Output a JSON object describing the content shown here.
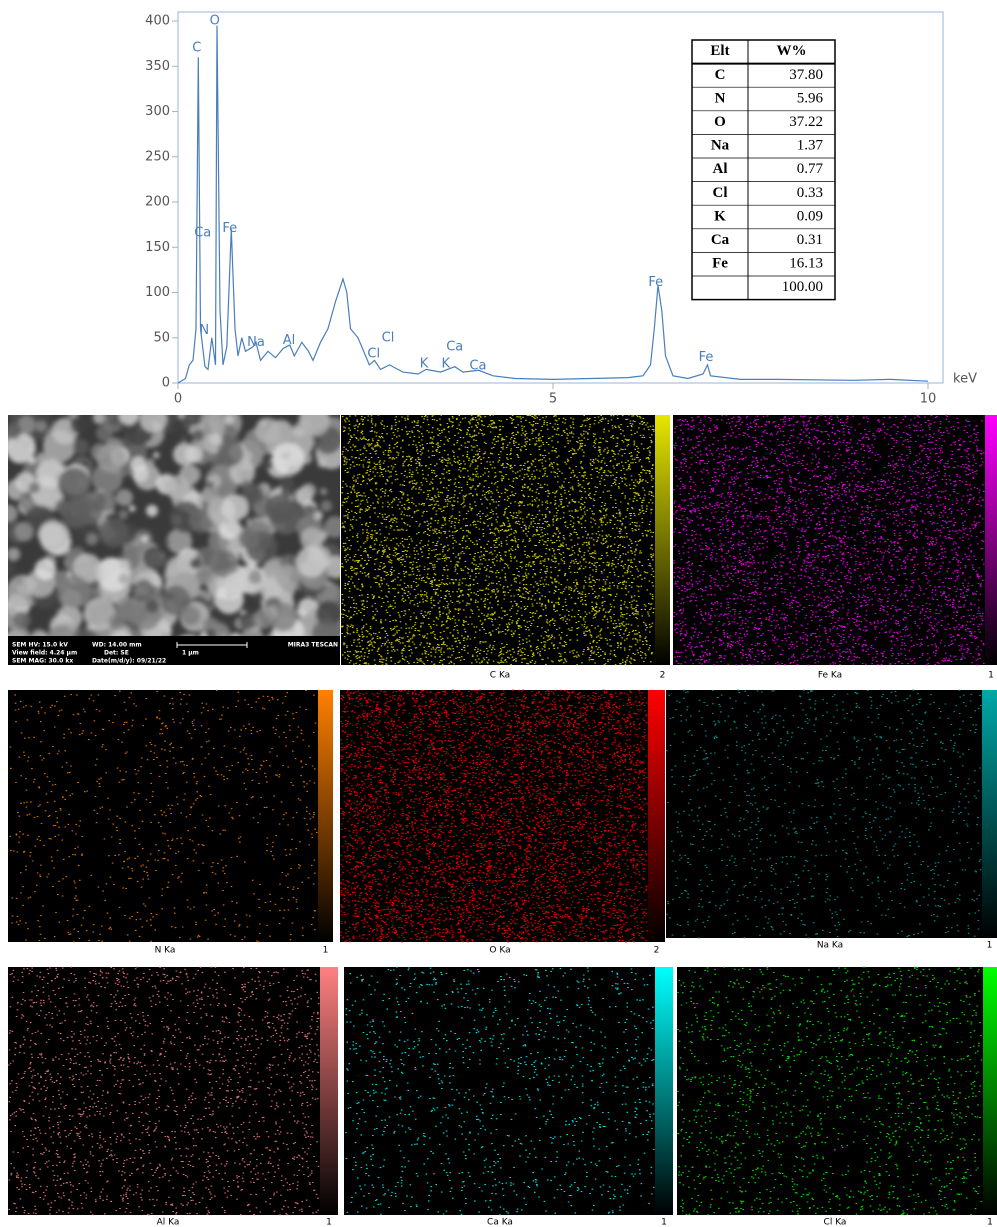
{
  "chart_data": {
    "type": "line",
    "xlabel": "keV",
    "color": "#4a7ebb",
    "x": [
      0,
      0.1,
      0.15,
      0.2,
      0.24,
      0.27,
      0.3,
      0.36,
      0.4,
      0.45,
      0.5,
      0.52,
      0.56,
      0.6,
      0.65,
      0.71,
      0.76,
      0.8,
      0.85,
      0.9,
      1.0,
      1.04,
      1.1,
      1.2,
      1.3,
      1.4,
      1.49,
      1.55,
      1.65,
      1.74,
      1.8,
      1.9,
      2.0,
      2.1,
      2.2,
      2.25,
      2.3,
      2.4,
      2.45,
      2.55,
      2.62,
      2.7,
      2.82,
      3.0,
      3.2,
      3.31,
      3.5,
      3.69,
      3.8,
      4.01,
      4.2,
      4.5,
      5.0,
      5.5,
      6.0,
      6.2,
      6.3,
      6.35,
      6.4,
      6.45,
      6.5,
      6.6,
      6.8,
      7.0,
      7.06,
      7.1,
      7.5,
      8.0,
      9.0,
      9.5,
      10.0
    ],
    "values": [
      0,
      5,
      20,
      25,
      60,
      360,
      60,
      18,
      15,
      50,
      20,
      395,
      80,
      20,
      40,
      170,
      60,
      30,
      50,
      35,
      40,
      45,
      25,
      35,
      28,
      38,
      42,
      30,
      45,
      35,
      25,
      45,
      60,
      90,
      115,
      100,
      60,
      50,
      40,
      20,
      25,
      15,
      20,
      12,
      10,
      15,
      12,
      18,
      12,
      14,
      8,
      5,
      4,
      5,
      6,
      8,
      20,
      60,
      108,
      80,
      30,
      8,
      5,
      10,
      20,
      8,
      4,
      4,
      3,
      4,
      2
    ],
    "xlim": [
      0,
      10.2
    ],
    "ylim": [
      0,
      410
    ],
    "xticks": [
      0,
      5,
      10
    ],
    "yticks": [
      0,
      50,
      100,
      150,
      200,
      250,
      300,
      350,
      400
    ],
    "annotations": [
      {
        "text": "C",
        "x": 0.25,
        "y": 370
      },
      {
        "text": "O",
        "x": 0.49,
        "y": 400
      },
      {
        "text": "Ca",
        "x": 0.33,
        "y": 166
      },
      {
        "text": "Fe",
        "x": 0.69,
        "y": 171
      },
      {
        "text": "N",
        "x": 0.35,
        "y": 58
      },
      {
        "text": "Na",
        "x": 1.04,
        "y": 45
      },
      {
        "text": "Al",
        "x": 1.48,
        "y": 47
      },
      {
        "text": "Cl",
        "x": 2.8,
        "y": 50
      },
      {
        "text": "Cl",
        "x": 2.61,
        "y": 32
      },
      {
        "text": "K",
        "x": 3.28,
        "y": 21
      },
      {
        "text": "K",
        "x": 3.57,
        "y": 21
      },
      {
        "text": "Ca",
        "x": 3.69,
        "y": 40
      },
      {
        "text": "Ca",
        "x": 4.0,
        "y": 19
      },
      {
        "text": "Fe",
        "x": 6.37,
        "y": 111
      },
      {
        "text": "Fe",
        "x": 7.04,
        "y": 28
      }
    ]
  },
  "table": {
    "header": [
      "Elt",
      "W%"
    ],
    "rows": [
      [
        "C",
        "37.80"
      ],
      [
        "N",
        "5.96"
      ],
      [
        "O",
        "37.22"
      ],
      [
        "Na",
        "1.37"
      ],
      [
        "Al",
        "0.77"
      ],
      [
        "Cl",
        "0.33"
      ],
      [
        "K",
        "0.09"
      ],
      [
        "Ca",
        "0.31"
      ],
      [
        "Fe",
        "16.13"
      ]
    ],
    "total": "100.00"
  },
  "sem": {
    "hv": "SEM HV: 15.0 kV",
    "wd": "WD: 14.00 mm",
    "brand": "MIRA3 TESCAN",
    "view": "View field: 4.24 µm",
    "det": "Det: SE",
    "scale": "1 µm",
    "mag": "SEM MAG: 30.0 kx",
    "date": "Date(m/d/y): 09/21/22"
  },
  "maps": [
    {
      "label": "C Ka",
      "color": "#e6e600",
      "scale_max": "2"
    },
    {
      "label": "Fe Ka",
      "color": "#ff00ff",
      "scale_max": "1"
    },
    {
      "label": "N Ka",
      "color": "#ff8000",
      "scale_max": "1"
    },
    {
      "label": "O Ka",
      "color": "#ff0000",
      "scale_max": "2"
    },
    {
      "label": "Na Ka",
      "color": "#00a8a8",
      "scale_max": "1"
    },
    {
      "label": "Al Ka",
      "color": "#ff8080",
      "scale_max": "1"
    },
    {
      "label": "Ca Ka",
      "color": "#00ffff",
      "scale_max": "1"
    },
    {
      "label": "Cl Ka",
      "color": "#00ff00",
      "scale_max": "1"
    }
  ]
}
